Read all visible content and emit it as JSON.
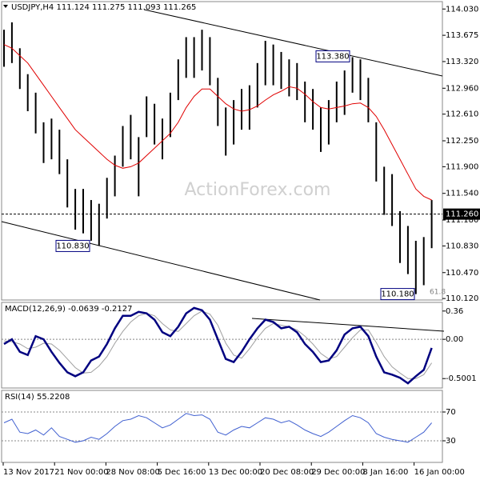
{
  "chart_data": [
    {
      "type": "ohlc",
      "title": "USDJPY,H4  111.124 111.275 111.093 111.265",
      "watermark": "ActionForex.com",
      "bar_color": "#000000",
      "high": [
        113.75,
        113.85,
        113.5,
        113.15,
        112.9,
        112.5,
        112.55,
        112.4,
        112.0,
        111.6,
        111.6,
        111.45,
        111.4,
        111.75,
        112.05,
        112.45,
        112.6,
        112.3,
        112.85,
        112.75,
        112.55,
        112.9,
        113.35,
        113.65,
        113.65,
        113.75,
        113.65,
        113.1,
        112.7,
        112.8,
        112.95,
        113.0,
        113.3,
        113.6,
        113.55,
        113.45,
        113.35,
        113.3,
        113.05,
        112.95,
        112.7,
        112.8,
        113.05,
        113.2,
        113.38,
        113.35,
        113.1,
        112.5,
        111.9,
        111.8,
        111.3,
        111.1,
        110.9,
        110.95,
        111.45
      ],
      "low": [
        113.25,
        113.3,
        112.95,
        112.65,
        112.35,
        111.95,
        112.0,
        111.8,
        111.35,
        111.05,
        111.0,
        110.9,
        110.83,
        111.2,
        111.5,
        111.9,
        112.0,
        111.5,
        112.3,
        112.2,
        112.0,
        112.3,
        112.8,
        113.1,
        113.1,
        113.2,
        113.0,
        112.45,
        112.05,
        112.2,
        112.4,
        112.4,
        112.7,
        113.0,
        113.0,
        112.95,
        112.85,
        112.8,
        112.5,
        112.4,
        112.1,
        112.2,
        112.5,
        112.6,
        112.9,
        112.8,
        112.5,
        111.7,
        111.25,
        111.1,
        110.6,
        110.45,
        110.18,
        110.3,
        110.8
      ],
      "ma_color": "#e00000",
      "ma_values": [
        113.55,
        113.5,
        113.4,
        113.3,
        113.15,
        113.0,
        112.85,
        112.7,
        112.55,
        112.4,
        112.3,
        112.2,
        112.1,
        112.0,
        111.92,
        111.88,
        111.9,
        111.95,
        112.05,
        112.15,
        112.25,
        112.35,
        112.5,
        112.7,
        112.85,
        112.95,
        112.95,
        112.85,
        112.75,
        112.68,
        112.65,
        112.67,
        112.72,
        112.8,
        112.87,
        112.92,
        112.98,
        112.96,
        112.88,
        112.78,
        112.7,
        112.68,
        112.7,
        112.72,
        112.75,
        112.76,
        112.7,
        112.58,
        112.4,
        112.2,
        112.0,
        111.8,
        111.6,
        111.5,
        111.45
      ],
      "ylim": [
        110.1,
        114.13
      ],
      "yticks": [
        {
          "value": 114.03,
          "label": "114.030"
        },
        113.675,
        {
          "value": 113.32,
          "label": "113.320"
        },
        {
          "value": 112.96,
          "label": "112.960"
        },
        {
          "value": 112.61,
          "label": "112.610"
        },
        {
          "value": 112.25,
          "label": "112.250"
        },
        {
          "value": 111.9,
          "label": "111.900"
        },
        {
          "value": 111.54,
          "label": "111.540"
        },
        {
          "value": 111.18,
          "label": "111.180"
        },
        {
          "value": 110.83,
          "label": "110.830"
        },
        {
          "value": 110.47,
          "label": "110.470"
        },
        {
          "value": 110.12,
          "label": "110.120"
        }
      ],
      "last_price": {
        "value": 111.26,
        "label": "111.260"
      },
      "annotations": [
        {
          "value": 113.38,
          "label": "113.380"
        },
        {
          "value": 110.83,
          "label": "110.830"
        },
        {
          "value": 110.18,
          "label": "110.180"
        }
      ],
      "fib_level": 61.8
    },
    {
      "type": "macd",
      "title": "MACD(12,26,9) -0.0639 -0.2127",
      "ylim": [
        -0.62,
        0.47
      ],
      "yticks": [
        0.36,
        {
          "value": 0,
          "label": "0.00"
        },
        -0.5001
      ],
      "macd": {
        "color": "#000080",
        "values": [
          -0.06,
          0,
          -0.16,
          -0.2,
          0.04,
          0,
          -0.16,
          -0.3,
          -0.42,
          -0.47,
          -0.42,
          -0.27,
          -0.22,
          -0.06,
          0.14,
          0.3,
          0.3,
          0.35,
          0.33,
          0.25,
          0.09,
          0.04,
          0.16,
          0.33,
          0.4,
          0.37,
          0.25,
          0,
          -0.25,
          -0.29,
          -0.16,
          0,
          0.14,
          0.25,
          0.22,
          0.14,
          0.16,
          0.09,
          -0.06,
          -0.16,
          -0.29,
          -0.27,
          -0.14,
          0.06,
          0.14,
          0.16,
          0.04,
          -0.22,
          -0.42,
          -0.45,
          -0.49,
          -0.56,
          -0.47,
          -0.39,
          -0.11
        ]
      },
      "signal": {
        "color": "#a0a0a0",
        "values": [
          -0.02,
          -0.03,
          -0.06,
          -0.12,
          -0.1,
          -0.05,
          -0.06,
          -0.14,
          -0.25,
          -0.36,
          -0.43,
          -0.42,
          -0.34,
          -0.22,
          -0.05,
          0.1,
          0.22,
          0.3,
          0.33,
          0.3,
          0.2,
          0.12,
          0.1,
          0.2,
          0.3,
          0.36,
          0.32,
          0.18,
          -0.05,
          -0.2,
          -0.24,
          -0.12,
          0.02,
          0.14,
          0.2,
          0.18,
          0.16,
          0.12,
          0.04,
          -0.06,
          -0.18,
          -0.25,
          -0.22,
          -0.1,
          0.02,
          0.12,
          0.12,
          -0.04,
          -0.22,
          -0.35,
          -0.43,
          -0.5,
          -0.5,
          -0.45,
          -0.3
        ]
      }
    },
    {
      "type": "rsi",
      "title": "RSI(14) 55.2208",
      "color": "#4060d0",
      "grid": true,
      "ylim": [
        0,
        100
      ],
      "yticks": [
        70,
        30
      ],
      "values": [
        55,
        60,
        42,
        40,
        45,
        38,
        48,
        36,
        32,
        28,
        30,
        35,
        32,
        40,
        50,
        58,
        60,
        65,
        62,
        55,
        48,
        52,
        60,
        68,
        65,
        66,
        60,
        42,
        38,
        45,
        50,
        48,
        55,
        62,
        60,
        55,
        58,
        52,
        45,
        40,
        36,
        42,
        50,
        58,
        65,
        62,
        55,
        40,
        35,
        32,
        30,
        28,
        35,
        42,
        55
      ],
      "x_labels": [
        "13 Nov 2017",
        "21 Nov 00:00",
        "28 Nov 08:00",
        "5 Dec 16:00",
        "13 Dec 00:00",
        "20 Dec 08:00",
        "29 Dec 00:00",
        "8 Jan 16:00",
        "16 Jan 00:00"
      ]
    }
  ]
}
